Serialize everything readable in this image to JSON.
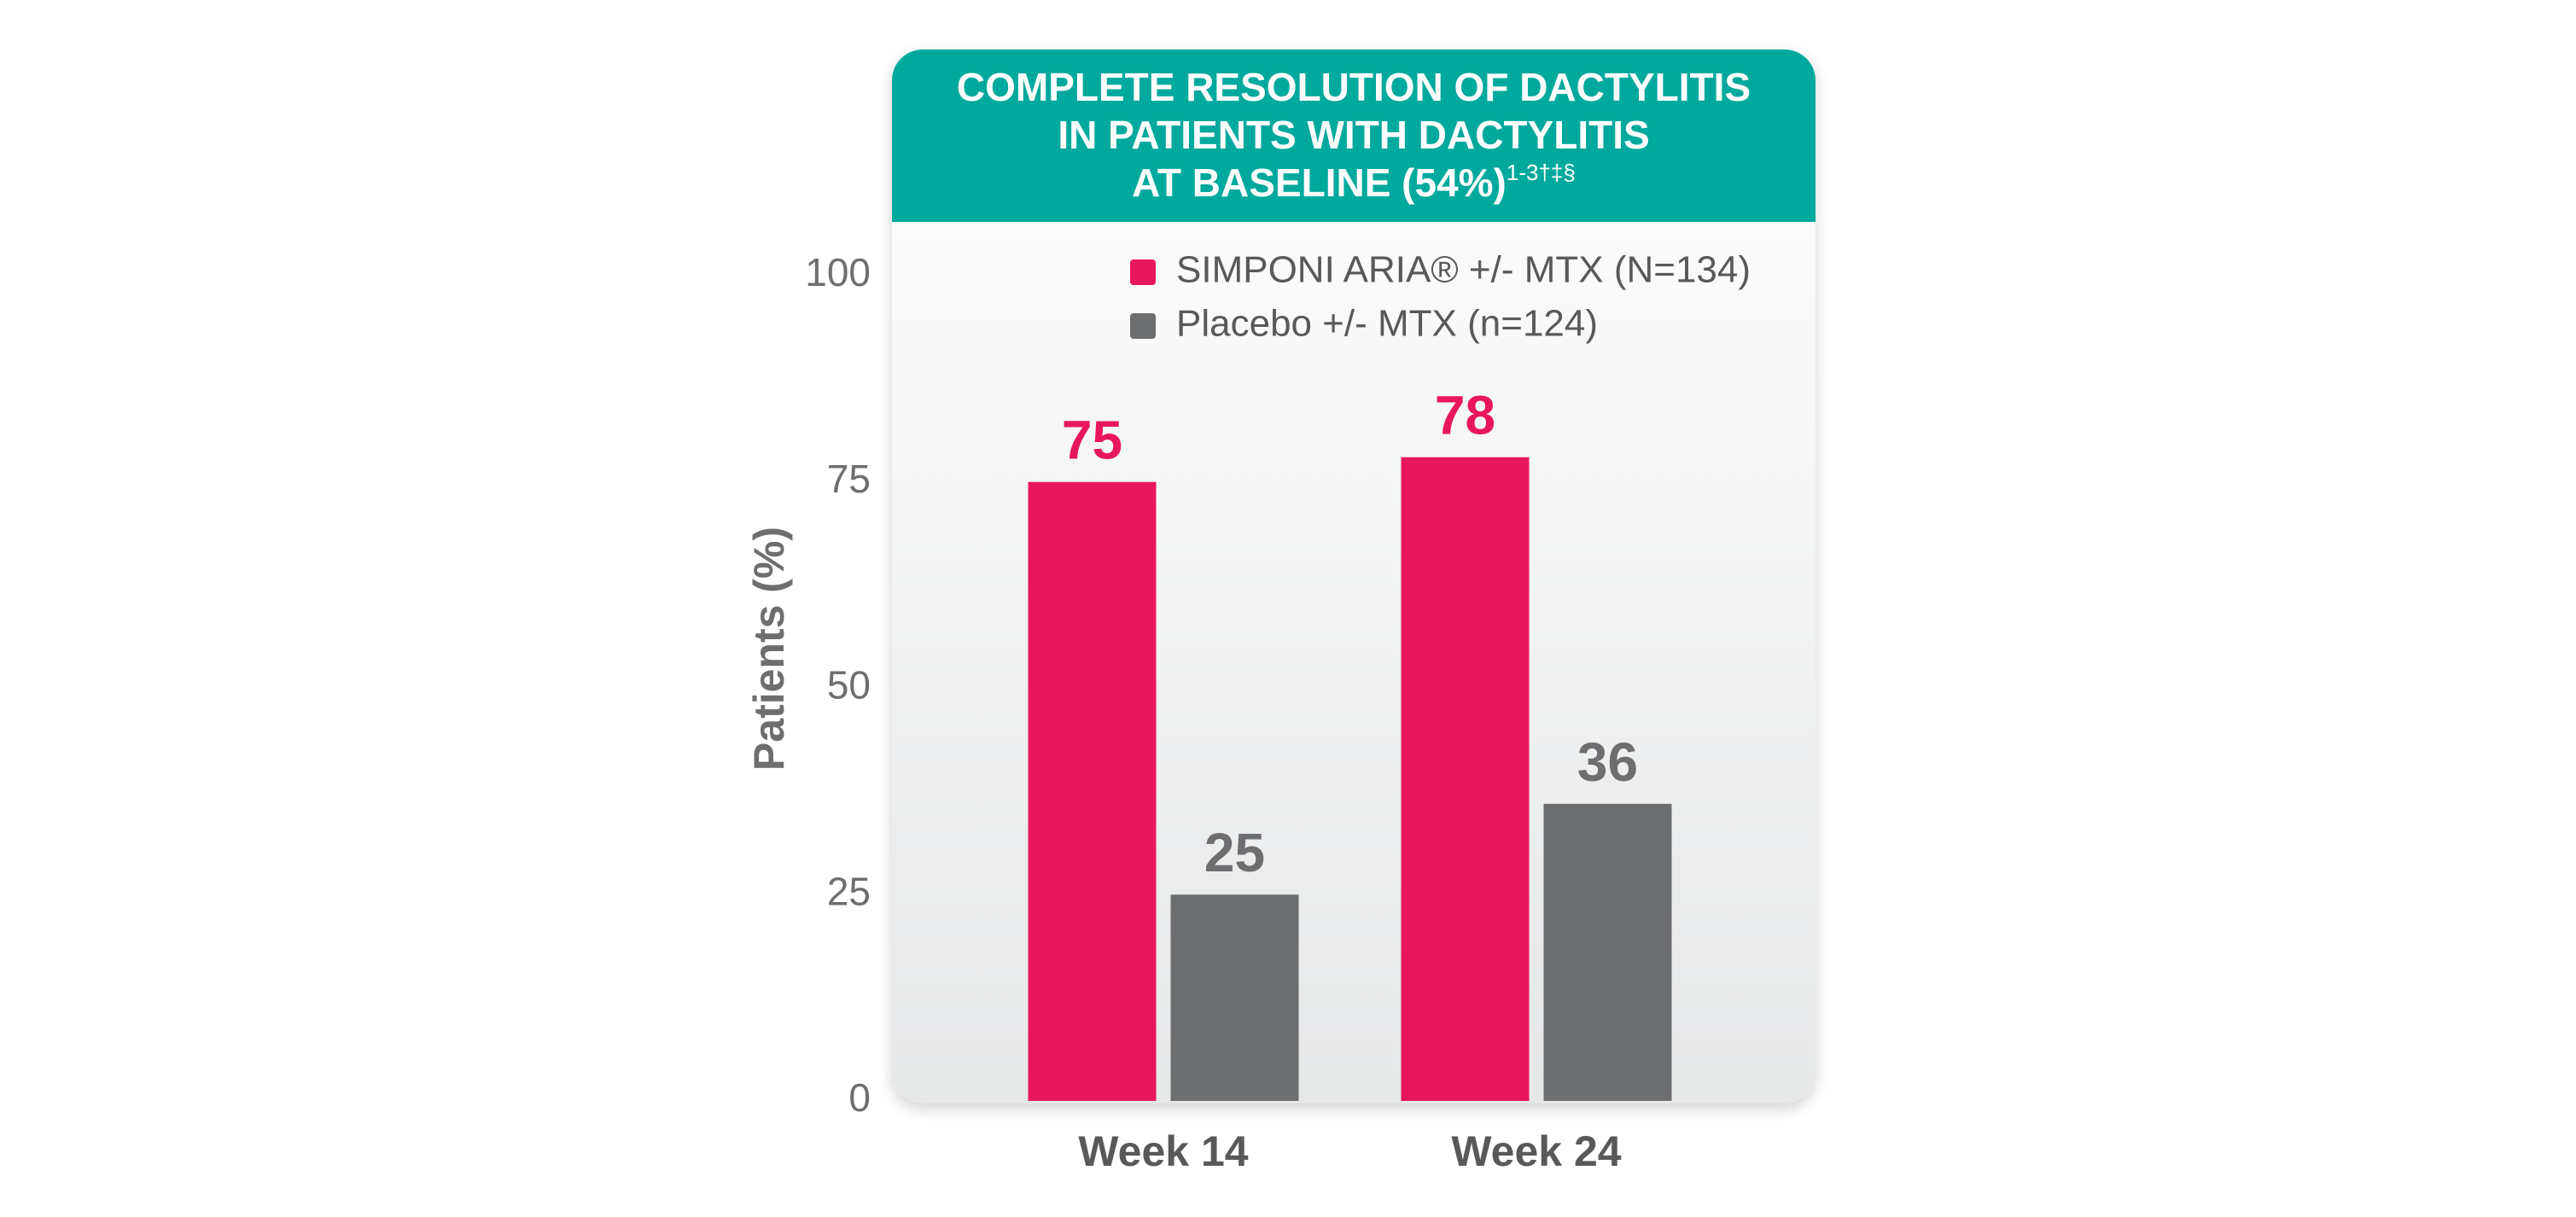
{
  "chart_data": {
    "type": "bar",
    "title_lines": [
      "COMPLETE RESOLUTION OF DACTYLITIS",
      "IN PATIENTS WITH DACTYLITIS",
      "AT BASELINE (54%)"
    ],
    "title_superscript": "1-3†‡§",
    "y_label": "Patients (%)",
    "categories": [
      "Week 14",
      "Week 24"
    ],
    "series": [
      {
        "name": "SIMPONI ARIA® +/- MTX (N=134)",
        "color": "#e8175d",
        "values": [
          75,
          78
        ]
      },
      {
        "name": "Placebo +/- MTX (n=124)",
        "color": "#6d6e70",
        "values": [
          25,
          36
        ]
      }
    ],
    "ylim": [
      0,
      100
    ],
    "yticks": [
      0,
      25,
      50,
      75,
      100
    ],
    "grid": false
  }
}
